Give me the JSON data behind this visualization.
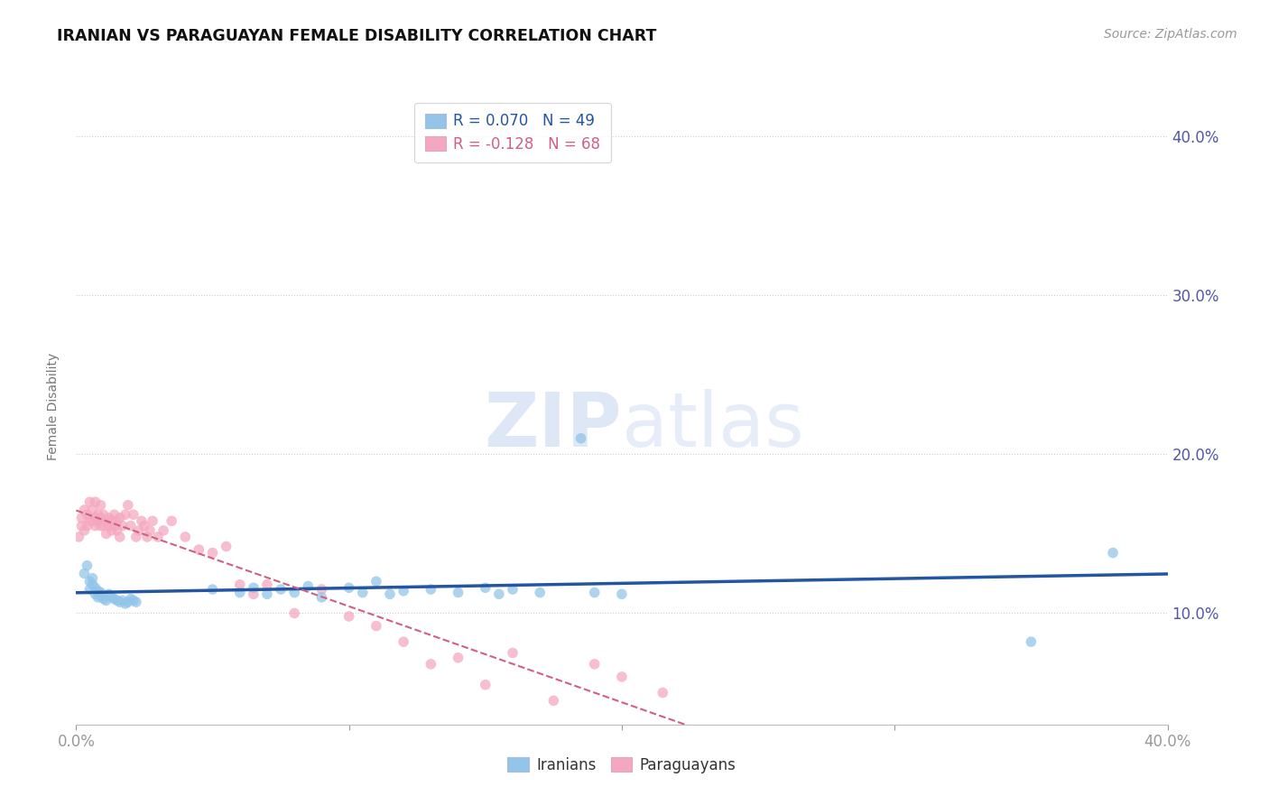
{
  "title": "IRANIAN VS PARAGUAYAN FEMALE DISABILITY CORRELATION CHART",
  "source": "Source: ZipAtlas.com",
  "ylabel": "Female Disability",
  "xmin": 0.0,
  "xmax": 0.4,
  "ymin": 0.03,
  "ymax": 0.43,
  "yticks": [
    0.1,
    0.2,
    0.3,
    0.4
  ],
  "ytick_labels": [
    "10.0%",
    "20.0%",
    "30.0%",
    "40.0%"
  ],
  "xticks": [
    0.0,
    0.1,
    0.2,
    0.3,
    0.4
  ],
  "xtick_labels": [
    "0.0%",
    "",
    "",
    "",
    "40.0%"
  ],
  "legend_R_blue": "R = 0.070",
  "legend_N_blue": "N = 49",
  "legend_R_pink": "R = -0.128",
  "legend_N_pink": "N = 68",
  "blue_color": "#92C5E8",
  "pink_color": "#F4A8C0",
  "blue_line_color": "#2355A0",
  "pink_line_color": "#D06080",
  "watermark_color": "#C8D8F0",
  "iranians_x": [
    0.003,
    0.004,
    0.005,
    0.005,
    0.006,
    0.006,
    0.007,
    0.007,
    0.008,
    0.008,
    0.009,
    0.009,
    0.01,
    0.011,
    0.012,
    0.013,
    0.014,
    0.015,
    0.016,
    0.017,
    0.018,
    0.019,
    0.02,
    0.021,
    0.022,
    0.05,
    0.06,
    0.065,
    0.07,
    0.075,
    0.08,
    0.085,
    0.09,
    0.1,
    0.105,
    0.11,
    0.115,
    0.12,
    0.13,
    0.14,
    0.15,
    0.155,
    0.16,
    0.17,
    0.185,
    0.19,
    0.2,
    0.35,
    0.38
  ],
  "iranians_y": [
    0.125,
    0.13,
    0.115,
    0.12,
    0.118,
    0.122,
    0.112,
    0.116,
    0.11,
    0.114,
    0.111,
    0.113,
    0.109,
    0.108,
    0.112,
    0.11,
    0.109,
    0.108,
    0.107,
    0.108,
    0.106,
    0.107,
    0.109,
    0.108,
    0.107,
    0.115,
    0.113,
    0.116,
    0.112,
    0.115,
    0.113,
    0.117,
    0.11,
    0.116,
    0.113,
    0.12,
    0.112,
    0.114,
    0.115,
    0.113,
    0.116,
    0.112,
    0.115,
    0.113,
    0.21,
    0.113,
    0.112,
    0.082,
    0.138
  ],
  "paraguayans_x": [
    0.001,
    0.002,
    0.002,
    0.003,
    0.003,
    0.004,
    0.004,
    0.005,
    0.005,
    0.006,
    0.006,
    0.007,
    0.007,
    0.007,
    0.008,
    0.008,
    0.009,
    0.009,
    0.009,
    0.01,
    0.01,
    0.011,
    0.011,
    0.012,
    0.012,
    0.013,
    0.013,
    0.014,
    0.014,
    0.015,
    0.015,
    0.016,
    0.016,
    0.017,
    0.018,
    0.019,
    0.02,
    0.021,
    0.022,
    0.023,
    0.024,
    0.025,
    0.026,
    0.027,
    0.028,
    0.03,
    0.032,
    0.035,
    0.04,
    0.045,
    0.05,
    0.055,
    0.06,
    0.065,
    0.07,
    0.08,
    0.09,
    0.1,
    0.11,
    0.12,
    0.13,
    0.14,
    0.15,
    0.16,
    0.175,
    0.19,
    0.2,
    0.215
  ],
  "paraguayans_y": [
    0.148,
    0.155,
    0.16,
    0.152,
    0.165,
    0.155,
    0.162,
    0.158,
    0.17,
    0.158,
    0.165,
    0.16,
    0.155,
    0.17,
    0.158,
    0.162,
    0.155,
    0.16,
    0.168,
    0.155,
    0.162,
    0.158,
    0.15,
    0.16,
    0.155,
    0.152,
    0.158,
    0.155,
    0.162,
    0.152,
    0.158,
    0.16,
    0.148,
    0.155,
    0.162,
    0.168,
    0.155,
    0.162,
    0.148,
    0.152,
    0.158,
    0.155,
    0.148,
    0.152,
    0.158,
    0.148,
    0.152,
    0.158,
    0.148,
    0.14,
    0.138,
    0.142,
    0.118,
    0.112,
    0.118,
    0.1,
    0.115,
    0.098,
    0.092,
    0.082,
    0.068,
    0.072,
    0.055,
    0.075,
    0.045,
    0.068,
    0.06,
    0.05
  ]
}
